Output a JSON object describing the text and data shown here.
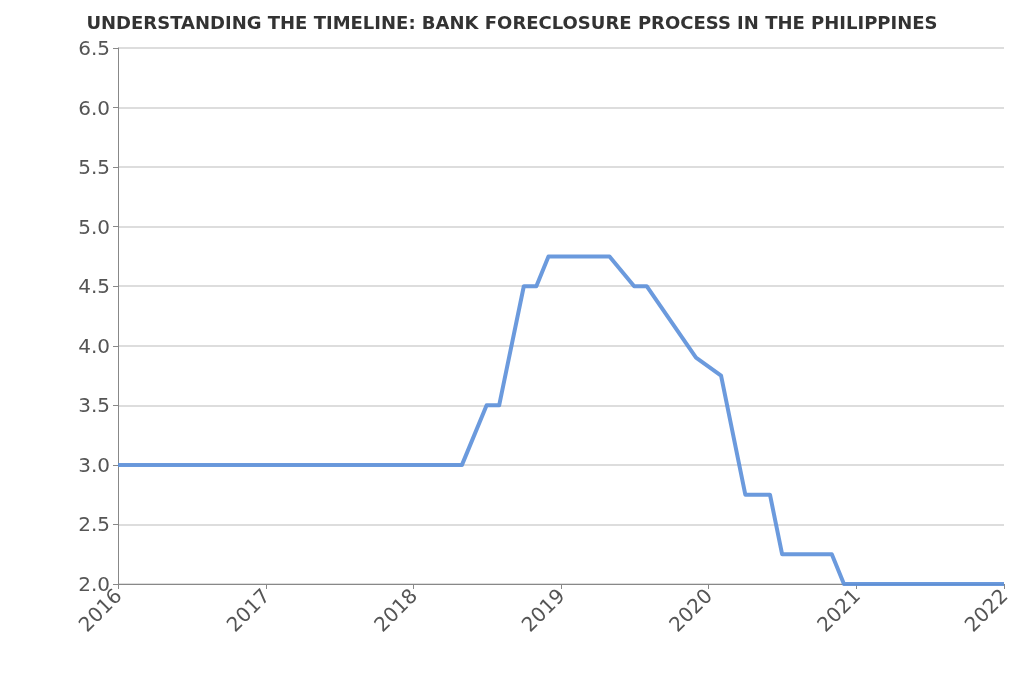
{
  "chart_data": {
    "type": "line",
    "title": "UNDERSTANDING THE TIMELINE: BANK FORECLOSURE PROCESS IN THE PHILIPPINES",
    "x": [
      "2016-01",
      "2018-05",
      "2018-07",
      "2018-08",
      "2018-10",
      "2018-11",
      "2018-12",
      "2019-05",
      "2019-07",
      "2019-08",
      "2019-12",
      "2020-02",
      "2020-04",
      "2020-06",
      "2020-07",
      "2020-11",
      "2020-12",
      "2022-01"
    ],
    "series": [
      {
        "color": "#5b8fd9",
        "values": [
          3.0,
          3.0,
          3.5,
          3.5,
          4.5,
          4.5,
          4.75,
          4.75,
          4.5,
          4.5,
          3.9,
          3.75,
          2.75,
          2.75,
          2.25,
          2.25,
          2.0,
          2.0
        ]
      }
    ],
    "xlim": [
      "2016-01",
      "2022-01"
    ],
    "xticks": [
      {
        "value": "2016",
        "label": "2016"
      },
      {
        "value": "2017",
        "label": "2017"
      },
      {
        "value": "2018",
        "label": "2018"
      },
      {
        "value": "2019",
        "label": "2019"
      },
      {
        "value": "2020",
        "label": "2020"
      },
      {
        "value": "2021",
        "label": "2021"
      },
      {
        "value": "2022",
        "label": "2022"
      }
    ],
    "ylim": [
      2.0,
      6.5
    ],
    "yticks": [
      {
        "value": 2,
        "label": "2.0"
      },
      {
        "value": 2.5,
        "label": "2.5"
      },
      {
        "value": 3,
        "label": "3.0"
      },
      {
        "value": 3.5,
        "label": "3.5"
      },
      {
        "value": 4,
        "label": "4.0"
      },
      {
        "value": 4.5,
        "label": "4.5"
      },
      {
        "value": 5,
        "label": "5.0"
      },
      {
        "value": 5.5,
        "label": "5.5"
      },
      {
        "value": 6,
        "label": "6.0"
      },
      {
        "value": 6.5,
        "label": "6.5"
      }
    ],
    "grid": "y",
    "marker": "none",
    "line_style": "solid"
  }
}
